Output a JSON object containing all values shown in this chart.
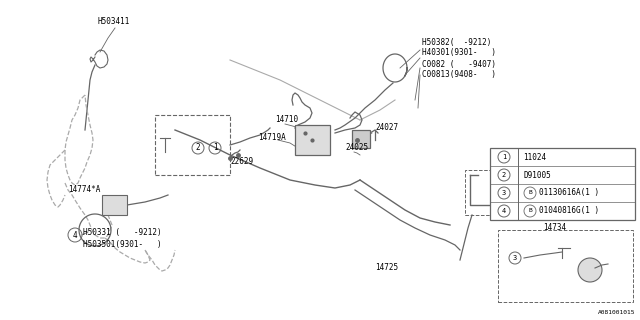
{
  "bg_color": "#ffffff",
  "lc": "#aaaaaa",
  "dc": "#666666",
  "diagram_id": "A081001015",
  "legend_items": [
    {
      "num": "1",
      "text": "11024",
      "has_b": false
    },
    {
      "num": "2",
      "text": "D91005",
      "has_b": false
    },
    {
      "num": "3",
      "text": "01130616A(1 )",
      "has_b": true
    },
    {
      "num": "4",
      "text": "01040816G(1 )",
      "has_b": true
    }
  ]
}
